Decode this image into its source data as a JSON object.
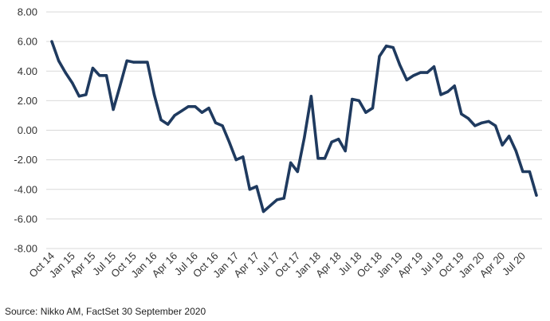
{
  "chart_data": {
    "type": "line",
    "title": "",
    "xlabel": "",
    "ylabel": "",
    "ylim": [
      -8,
      8
    ],
    "y_ticks": [
      "8.00",
      "6.00",
      "4.00",
      "2.00",
      "0.00",
      "-2.00",
      "-4.00",
      "-6.00",
      "-8.00"
    ],
    "x_tick_labels": [
      "Oct 14",
      "Jan 15",
      "Apr 15",
      "Jul 15",
      "Oct 15",
      "Jan 16",
      "Apr 16",
      "Jul 16",
      "Oct 16",
      "Jan 17",
      "Apr 17",
      "Jul 17",
      "Oct 17",
      "Jan 18",
      "Apr 18",
      "Jul 18",
      "Oct 18",
      "Jan 19",
      "Apr 19",
      "Jul 19",
      "Oct 19",
      "Jan 20",
      "Apr 20",
      "Jul 20"
    ],
    "grid": "horizontal",
    "legend": "none",
    "color": "#1f3a5f",
    "series": [
      {
        "values": [
          6.0,
          4.7,
          3.9,
          3.2,
          2.3,
          2.4,
          4.2,
          3.7,
          3.7,
          1.4,
          3.0,
          4.7,
          4.6,
          4.6,
          4.6,
          2.4,
          0.7,
          0.4,
          1.0,
          1.3,
          1.6,
          1.6,
          1.2,
          1.5,
          0.5,
          0.3,
          -0.8,
          -2.0,
          -1.8,
          -4.0,
          -3.8,
          -5.5,
          -5.1,
          -4.7,
          -4.6,
          -2.2,
          -2.8,
          -0.5,
          2.3,
          -1.9,
          -1.9,
          -0.8,
          -0.6,
          -1.4,
          2.1,
          2.0,
          1.2,
          1.5,
          5.0,
          5.7,
          5.6,
          4.4,
          3.4,
          3.7,
          3.9,
          3.9,
          4.3,
          2.4,
          2.6,
          3.0,
          1.1,
          0.8,
          0.3,
          0.5,
          0.6,
          0.3,
          -1.0,
          -0.4,
          -1.4,
          -2.8,
          -2.8,
          -4.4
        ]
      }
    ]
  },
  "source": "Source: Nikko AM, FactSet 30 September 2020"
}
